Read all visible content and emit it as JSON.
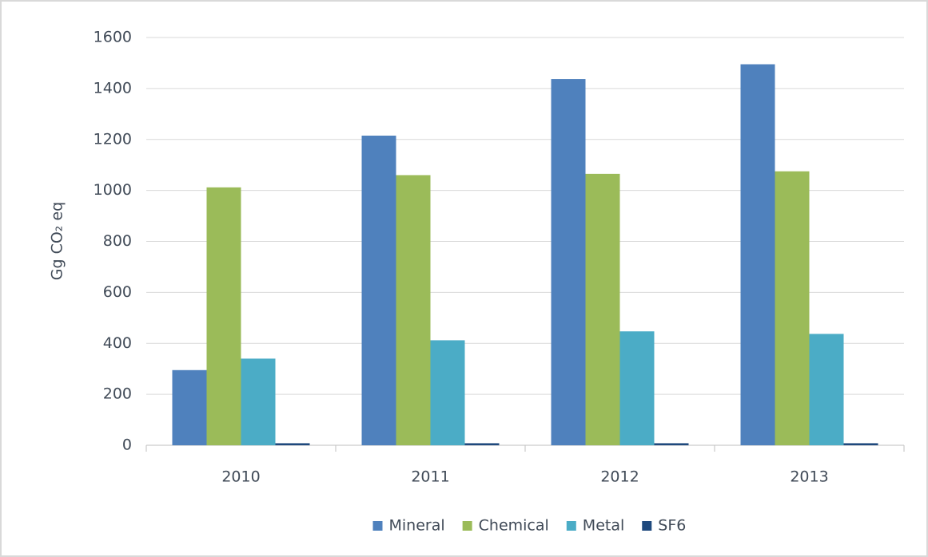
{
  "chart_data": {
    "type": "bar",
    "y_label": "Gg CO₂ eq",
    "categories": [
      "2010",
      "2011",
      "2012",
      "2013"
    ],
    "series": [
      {
        "name": "Mineral",
        "color": "#4f81bd",
        "values": [
          295,
          1215,
          1437,
          1495
        ]
      },
      {
        "name": "Chemical",
        "color": "#9bbb59",
        "values": [
          1012,
          1060,
          1065,
          1075
        ]
      },
      {
        "name": "Metal",
        "color": "#4bacc6",
        "values": [
          340,
          412,
          447,
          437
        ]
      },
      {
        "name": "SF6",
        "color": "#1f497d",
        "values": [
          8,
          8,
          8,
          8
        ]
      }
    ],
    "ylim": [
      0,
      1600
    ],
    "yticks": [
      0,
      200,
      400,
      600,
      800,
      1000,
      1200,
      1400,
      1600
    ],
    "grid": true,
    "legend": "bottom"
  }
}
